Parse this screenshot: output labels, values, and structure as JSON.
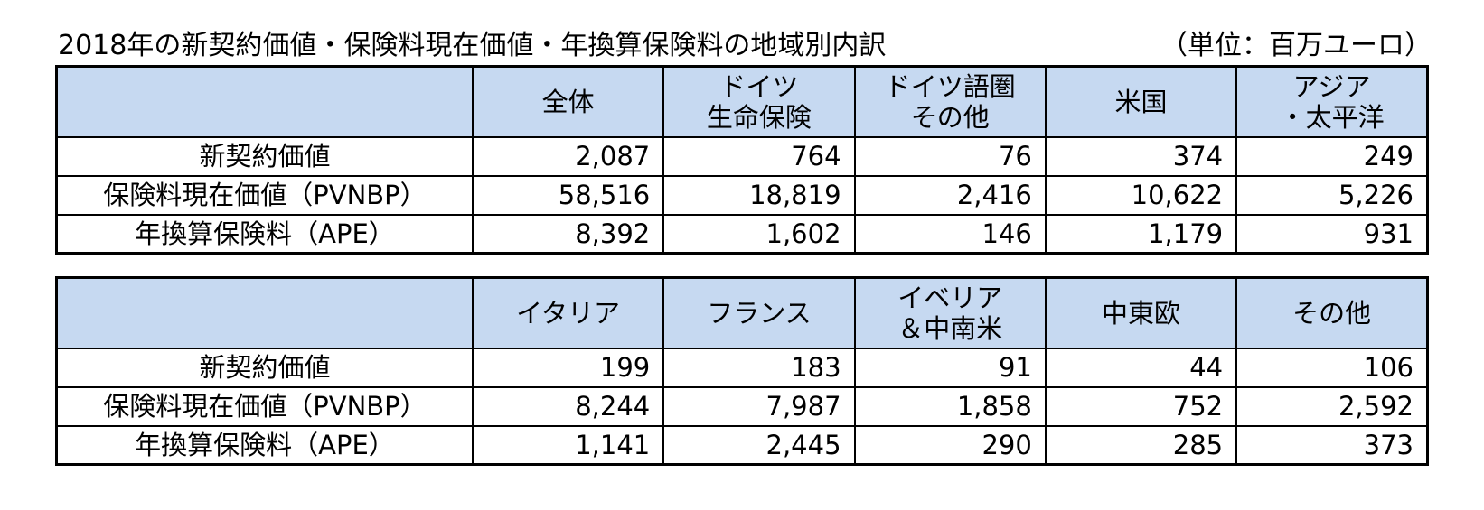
{
  "title": "2018年の新契約価値・保険料現在価値・年換算保険料の地域別内訳",
  "unit": "（単位：百万ユーロ）",
  "tables": [
    {
      "headers": [
        "全体",
        "ドイツ\n生命保険",
        "ドイツ語圏\nその他",
        "米国",
        "アジア\n・太平洋"
      ],
      "rows": [
        {
          "label": "新契約価値",
          "values": [
            "2,087",
            "764",
            "76",
            "374",
            "249"
          ]
        },
        {
          "label": "保険料現在価値（PVNBP）",
          "values": [
            "58,516",
            "18,819",
            "2,416",
            "10,622",
            "5,226"
          ]
        },
        {
          "label": "年換算保険料（APE）",
          "values": [
            "8,392",
            "1,602",
            "146",
            "1,179",
            "931"
          ]
        }
      ]
    },
    {
      "headers": [
        "イタリア",
        "フランス",
        "イベリア\n＆中南米",
        "中東欧",
        "その他"
      ],
      "rows": [
        {
          "label": "新契約価値",
          "values": [
            "199",
            "183",
            "91",
            "44",
            "106"
          ]
        },
        {
          "label": "保険料現在価値（PVNBP）",
          "values": [
            "8,244",
            "7,987",
            "1,858",
            "752",
            "2,592"
          ]
        },
        {
          "label": "年換算保険料（APE）",
          "values": [
            "1,141",
            "2,445",
            "290",
            "285",
            "373"
          ]
        }
      ]
    }
  ]
}
